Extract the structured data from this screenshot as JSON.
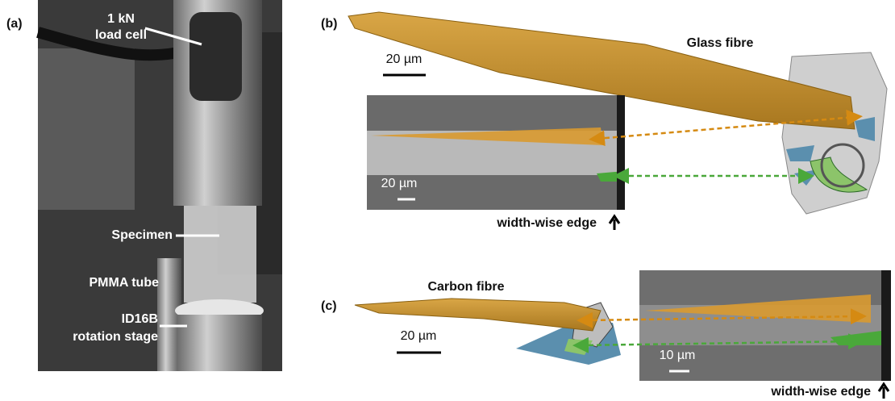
{
  "panels": [
    {
      "label": "(a)",
      "annotations": [
        "1 kN",
        "load cell",
        "Specimen",
        "PMMA tube",
        "ID16B",
        "rotation stage"
      ]
    },
    {
      "label": "(b)",
      "title": "Glass fibre",
      "scale_bar": "20 µm",
      "inset": {
        "scale_bar": "20 µm",
        "caption": "width-wise edge"
      }
    },
    {
      "label": "(c)",
      "title": "Carbon fibre",
      "scale_bar": "20 µm",
      "inset": {
        "scale_bar": "10 µm",
        "caption": "width-wise edge"
      }
    }
  ]
}
